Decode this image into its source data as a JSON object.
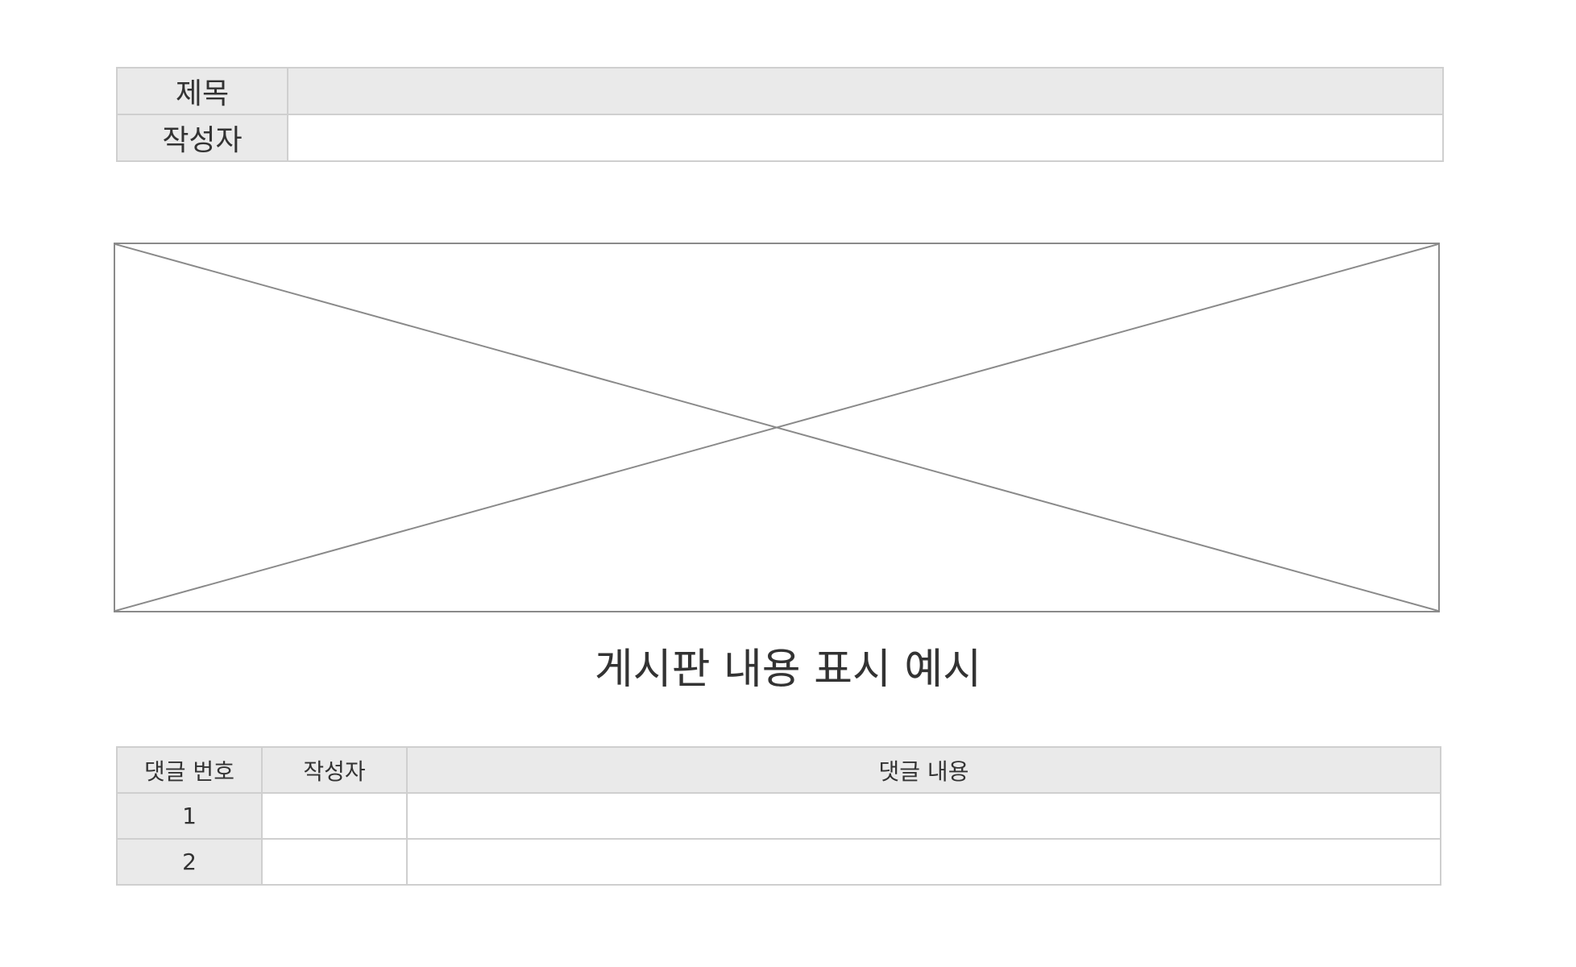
{
  "post_info": {
    "title_label": "제목",
    "title_value": "",
    "author_label": "작성자",
    "author_value": ""
  },
  "content": {
    "text": "게시판 내용 표시 예시"
  },
  "comments": {
    "headers": {
      "number": "댓글 번호",
      "author": "작성자",
      "content": "댓글 내용"
    },
    "rows": [
      {
        "number": "1",
        "author": "",
        "content": ""
      },
      {
        "number": "2",
        "author": "",
        "content": ""
      }
    ]
  },
  "colors": {
    "header_bg": "#eaeaea",
    "border": "#cfcfcf",
    "placeholder_line": "#8a8a8a",
    "text": "#333333"
  }
}
